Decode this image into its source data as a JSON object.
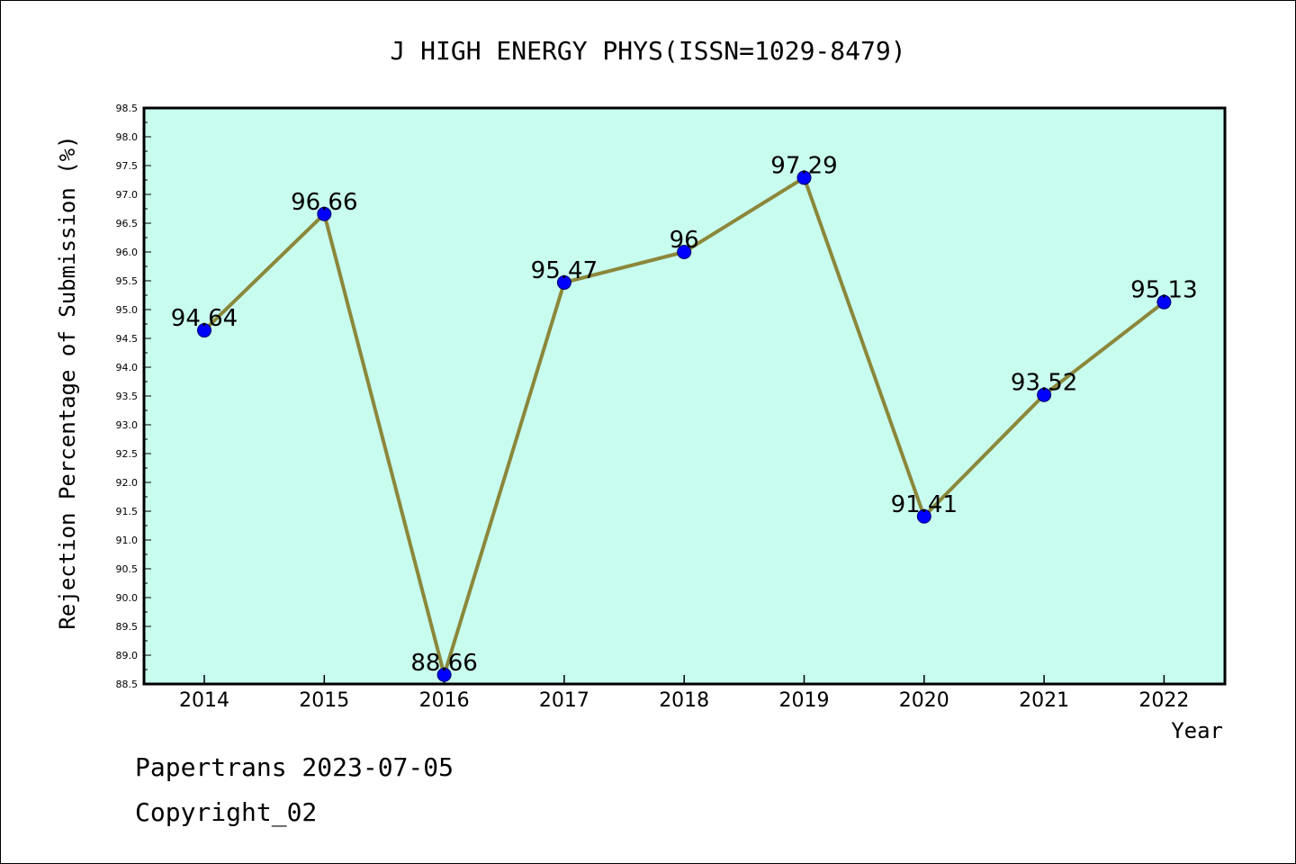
{
  "chart_data": {
    "type": "line",
    "title": "J HIGH ENERGY PHYS(ISSN=1029-8479)",
    "xlabel": "Year",
    "ylabel": "Rejection Percentage of Submission (%)",
    "categories": [
      "2014",
      "2015",
      "2016",
      "2017",
      "2018",
      "2019",
      "2020",
      "2021",
      "2022"
    ],
    "values": [
      94.64,
      96.66,
      88.66,
      95.47,
      96,
      97.29,
      91.41,
      93.52,
      95.13
    ],
    "data_labels": [
      "94.64",
      "96.66",
      "88.66",
      "95.47",
      "96",
      "97.29",
      "91.41",
      "93.52",
      "95.13"
    ],
    "ylim": [
      88.5,
      98.5
    ],
    "yticks": [
      "88.5",
      "89.0",
      "89.5",
      "90.0",
      "90.5",
      "91.0",
      "91.5",
      "92.0",
      "92.5",
      "93.0",
      "93.5",
      "94.0",
      "94.5",
      "95.0",
      "95.5",
      "96.0",
      "96.5",
      "97.0",
      "97.5",
      "98.0",
      "98.5"
    ],
    "grid": false,
    "colors": {
      "plot_background": "#c8fcee",
      "line": "#8b873a",
      "marker": "#0000ff"
    }
  },
  "footer": {
    "line1": "Papertrans 2023-07-05",
    "line2": "Copyright_02"
  }
}
